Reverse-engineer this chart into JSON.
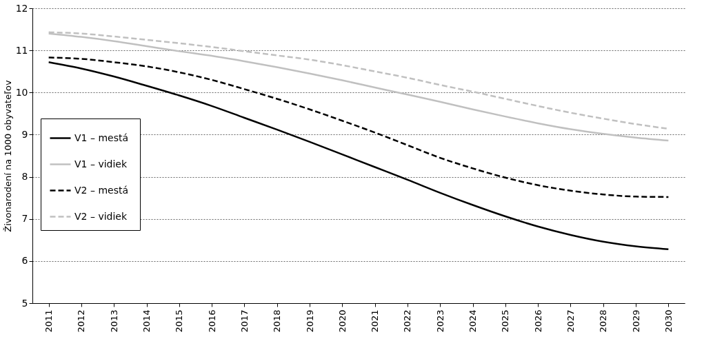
{
  "chart_data": {
    "type": "line",
    "ylabel": "Živonarodení na 1000 obyvateľov",
    "categories": [
      "2011",
      "2012",
      "2013",
      "2014",
      "2015",
      "2016",
      "2017",
      "2018",
      "2019",
      "2020",
      "2021",
      "2022",
      "2023",
      "2024",
      "2025",
      "2026",
      "2027",
      "2028",
      "2029",
      "2030"
    ],
    "ylim": [
      5,
      12
    ],
    "yticks": [
      5,
      6,
      7,
      8,
      9,
      10,
      11,
      12
    ],
    "grid": "y",
    "legend": "left",
    "marker": "none",
    "series": [
      {
        "name": "V1  – mestá",
        "color": "#000000",
        "line_style": "solid",
        "values": [
          10.72,
          10.57,
          10.38,
          10.16,
          9.93,
          9.68,
          9.4,
          9.12,
          8.83,
          8.53,
          8.23,
          7.93,
          7.62,
          7.33,
          7.06,
          6.82,
          6.62,
          6.46,
          6.35,
          6.28
        ]
      },
      {
        "name": "V1  – vidiek",
        "color": "#c0c0c0",
        "line_style": "solid",
        "values": [
          11.4,
          11.32,
          11.22,
          11.1,
          10.98,
          10.87,
          10.74,
          10.6,
          10.45,
          10.29,
          10.12,
          9.95,
          9.78,
          9.6,
          9.43,
          9.27,
          9.13,
          9.02,
          8.93,
          8.86
        ]
      },
      {
        "name": "V2  – mestá",
        "color": "#000000",
        "line_style": "dashed",
        "values": [
          10.83,
          10.8,
          10.72,
          10.62,
          10.48,
          10.3,
          10.08,
          9.85,
          9.6,
          9.33,
          9.05,
          8.75,
          8.45,
          8.2,
          7.98,
          7.8,
          7.67,
          7.58,
          7.53,
          7.52
        ]
      },
      {
        "name": "V2  – vidiek",
        "color": "#c0c0c0",
        "line_style": "dashed",
        "values": [
          11.43,
          11.4,
          11.33,
          11.25,
          11.17,
          11.08,
          10.98,
          10.88,
          10.78,
          10.65,
          10.5,
          10.35,
          10.18,
          10.02,
          9.85,
          9.68,
          9.52,
          9.38,
          9.25,
          9.14
        ]
      }
    ]
  }
}
